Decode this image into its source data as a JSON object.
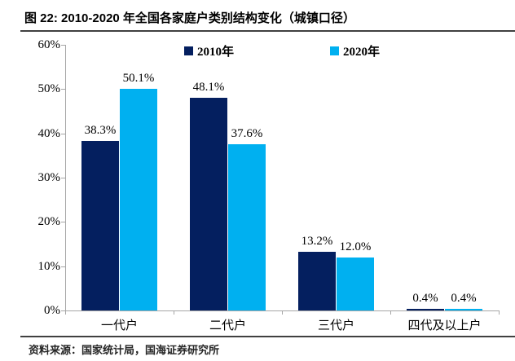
{
  "title": "图 22:  2010-2020 年全国各家庭户类别结构变化（城镇口径）",
  "source": "资料来源：国家统计局，国海证券研究所",
  "colors": {
    "series_2010": "#041F5F",
    "series_2020": "#00B0F0",
    "axis": "#A6A6A6",
    "rule": "#404040"
  },
  "chart_data": {
    "type": "bar",
    "title": "2010-2020 年全国各家庭户类别结构变化（城镇口径）",
    "categories": [
      "一代户",
      "二代户",
      "三代户",
      "四代及以上户"
    ],
    "series": [
      {
        "name": "2010年",
        "color": "#041F5F",
        "values": [
          38.3,
          48.1,
          13.2,
          0.4
        ]
      },
      {
        "name": "2020年",
        "color": "#00B0F0",
        "values": [
          50.1,
          37.6,
          12.0,
          0.4
        ]
      }
    ],
    "xlabel": "",
    "ylabel": "",
    "ylim": [
      0,
      60
    ],
    "ytick_step": 10,
    "ytick_format": "percent",
    "data_label_format": "one_decimal_percent",
    "legend_position": "top-center",
    "grid": false
  }
}
